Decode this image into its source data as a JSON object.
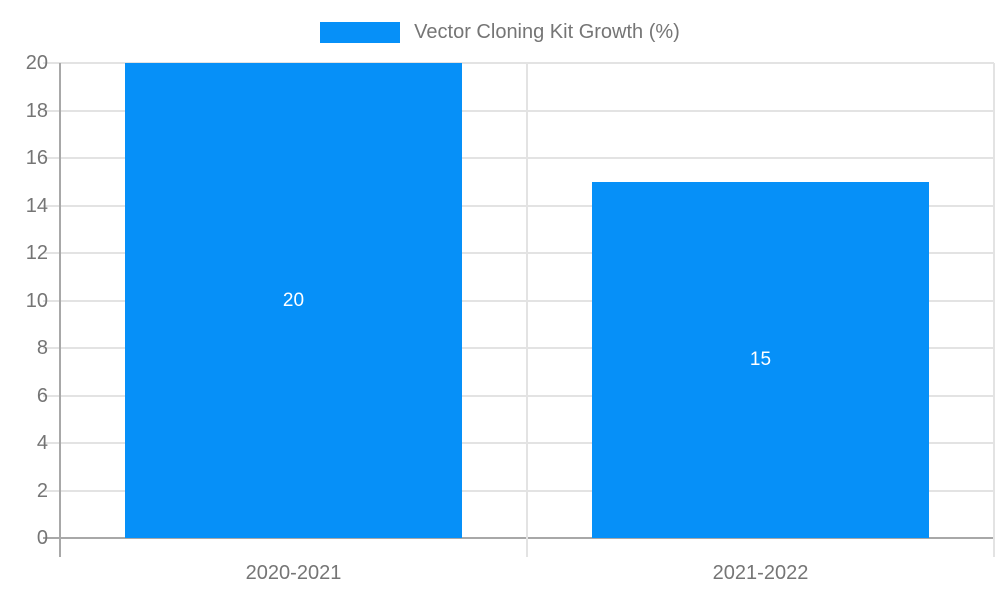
{
  "chart_data": {
    "type": "bar",
    "title": "",
    "legend": {
      "label": "Vector Cloning Kit Growth (%)",
      "position": "top-center"
    },
    "categories": [
      "2020-2021",
      "2021-2022"
    ],
    "values": [
      20,
      15
    ],
    "value_labels": [
      "20",
      "15"
    ],
    "y_ticks": [
      0,
      2,
      4,
      6,
      8,
      10,
      12,
      14,
      16,
      18,
      20
    ],
    "ylim": [
      0,
      20
    ],
    "grid": "on",
    "colors": {
      "bar": "#0690F8",
      "grid": "#e3e3e3",
      "axis": "#a8a8a8",
      "tick_text": "#757575",
      "legend_text": "#757575",
      "value_text": "#ffffff",
      "background": "#ffffff"
    }
  }
}
